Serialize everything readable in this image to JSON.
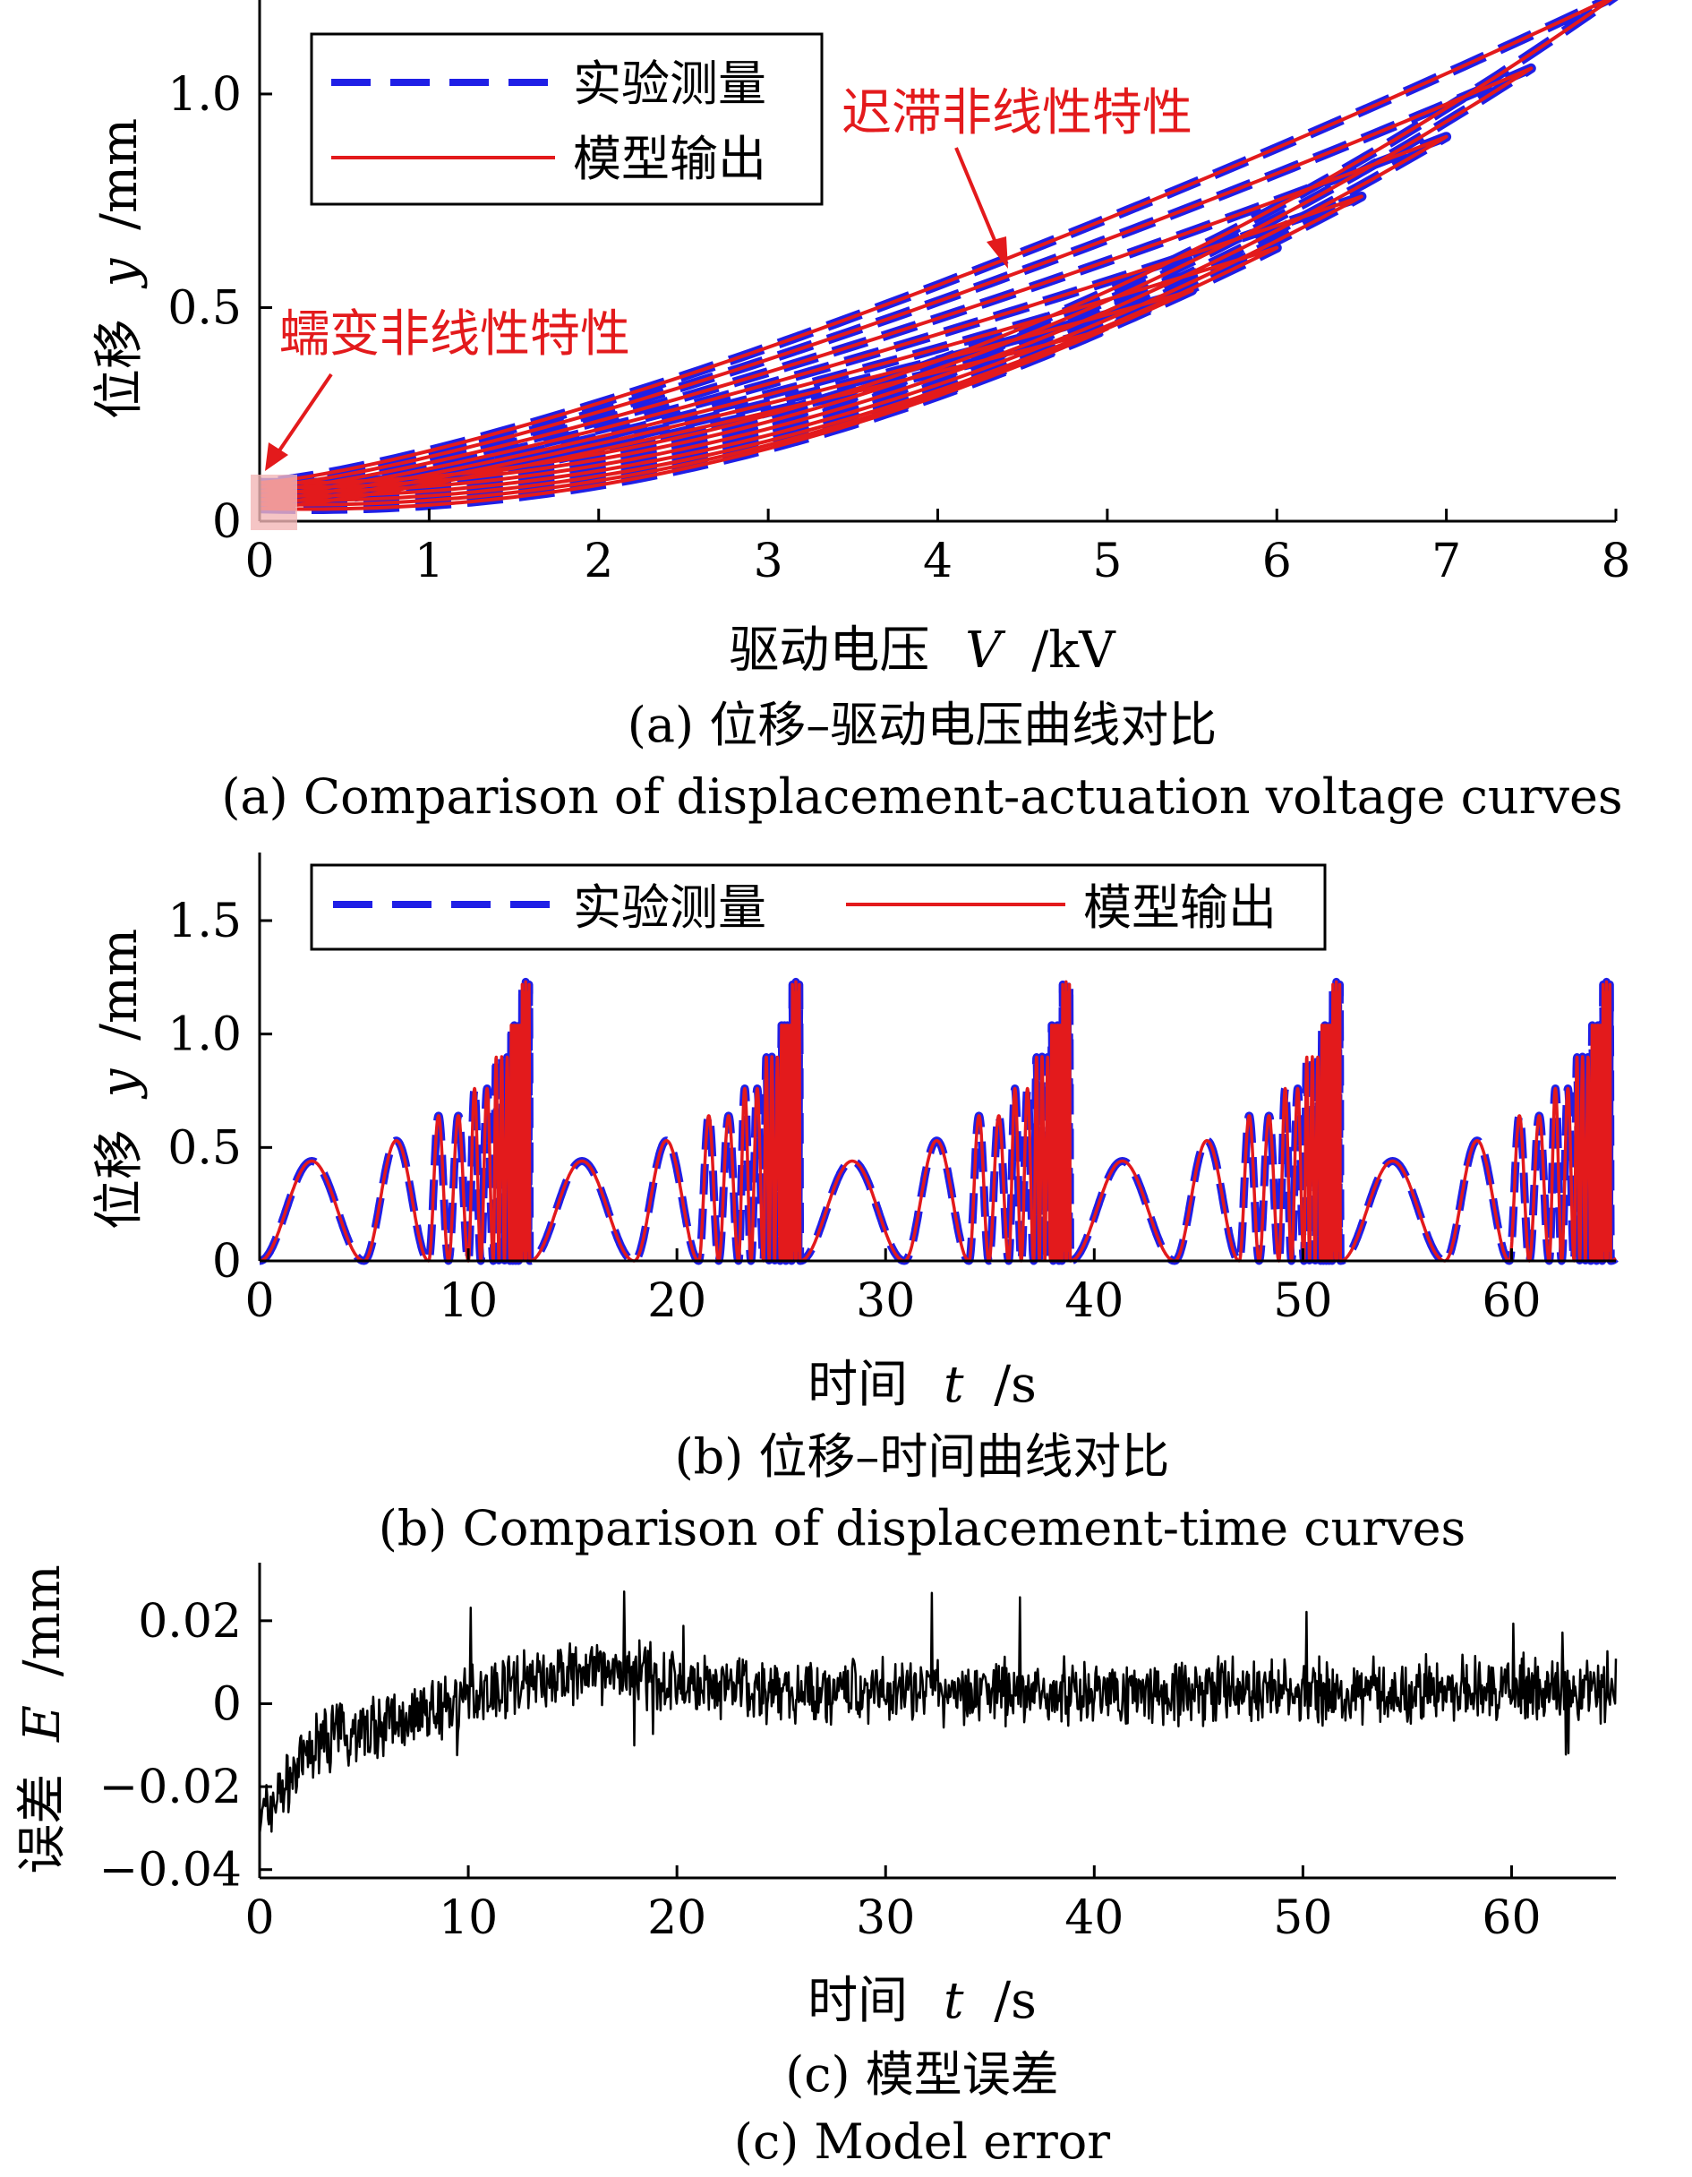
{
  "colors": {
    "measured": "#1f1fe6",
    "model": "#e31a1c",
    "error": "#000000",
    "highlight": "#f2b6b6"
  },
  "chart_data": [
    {
      "type": "line",
      "caption_cn": "(a) 位移–驱动电压曲线对比",
      "caption_en": "(a) Comparison of displacement-actuation voltage curves",
      "xlabel_text": "驱动电压",
      "xlabel_var": "V",
      "xlabel_unit": "/kV",
      "ylabel_text": "位移",
      "ylabel_var": "y",
      "ylabel_unit": "/mm",
      "xlim": [
        0,
        8
      ],
      "ylim": [
        0,
        1.22
      ],
      "xticks": [
        "0",
        "1",
        "2",
        "3",
        "4",
        "5",
        "6",
        "7",
        "8"
      ],
      "yticks": [
        "0",
        "0.5",
        "1.0"
      ],
      "legend": [
        "实验测量",
        "模型输出"
      ],
      "annotations": [
        "迟滞非线性特性",
        "蠕变非线性特性"
      ],
      "series": [
        {
          "name": "实验测量",
          "style": "dashed",
          "loops": [
            {
              "vmax": 5.0,
              "ymax": 0.45
            },
            {
              "vmax": 5.5,
              "ymax": 0.54
            },
            {
              "vmax": 6.0,
              "ymax": 0.64
            },
            {
              "vmax": 6.5,
              "ymax": 0.76
            },
            {
              "vmax": 7.0,
              "ymax": 0.9
            },
            {
              "vmax": 7.5,
              "ymax": 1.06
            },
            {
              "vmax": 8.0,
              "ymax": 1.23
            }
          ]
        },
        {
          "name": "模型输出",
          "style": "solid",
          "loops": [
            {
              "vmax": 5.0,
              "ymax": 0.45
            },
            {
              "vmax": 5.5,
              "ymax": 0.54
            },
            {
              "vmax": 6.0,
              "ymax": 0.64
            },
            {
              "vmax": 6.5,
              "ymax": 0.76
            },
            {
              "vmax": 7.0,
              "ymax": 0.9
            },
            {
              "vmax": 7.5,
              "ymax": 1.06
            },
            {
              "vmax": 8.0,
              "ymax": 1.23
            }
          ]
        }
      ]
    },
    {
      "type": "line",
      "caption_cn": "(b) 位移–时间曲线对比",
      "caption_en": "(b) Comparison of displacement-time curves",
      "xlabel_text": "时间",
      "xlabel_var": "t",
      "xlabel_unit": "/s",
      "ylabel_text": "位移",
      "ylabel_var": "y",
      "ylabel_unit": "/mm",
      "xlim": [
        0,
        65
      ],
      "ylim": [
        0,
        1.8
      ],
      "xticks": [
        "0",
        "10",
        "20",
        "30",
        "40",
        "50",
        "60"
      ],
      "yticks": [
        "0",
        "0.5",
        "1.0",
        "1.5"
      ],
      "legend": [
        "实验测量",
        "模型输出"
      ],
      "cycle_period_s": 12.95,
      "cycles": 5,
      "peaks_per_cycle": [
        0.44,
        0.53,
        0.64,
        0.76,
        0.9,
        1.06,
        1.23
      ],
      "series": [
        {
          "name": "实验测量",
          "style": "dashed"
        },
        {
          "name": "模型输出",
          "style": "solid"
        }
      ]
    },
    {
      "type": "line",
      "caption_cn": "(c) 模型误差",
      "caption_en": "(c) Model error",
      "xlabel_text": "时间",
      "xlabel_var": "t",
      "xlabel_unit": "/s",
      "ylabel_text": "误差",
      "ylabel_var": "E",
      "ylabel_unit": "/mm",
      "xlim": [
        0,
        65
      ],
      "ylim": [
        -0.042,
        0.034
      ],
      "xticks": [
        "0",
        "10",
        "20",
        "30",
        "40",
        "50",
        "60"
      ],
      "yticks": [
        "−0.04",
        "−0.02",
        "0",
        "0.02"
      ],
      "series": [
        {
          "name": "",
          "trend": [
            [
              0,
              -0.028
            ],
            [
              3,
              -0.008
            ],
            [
              6,
              -0.005
            ],
            [
              12,
              0.005
            ],
            [
              17,
              0.008
            ],
            [
              22,
              0.003
            ],
            [
              65,
              0.003
            ]
          ]
        }
      ]
    }
  ]
}
